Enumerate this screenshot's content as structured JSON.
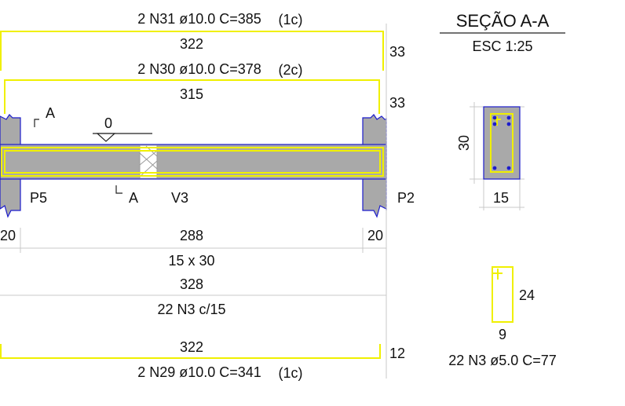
{
  "drawing": {
    "top_bar": {
      "label": "2 N31 ø10.0 C=385",
      "layer": "(1c)",
      "length": "322",
      "hook": "33"
    },
    "second_bar": {
      "label": "2 N30 ø10.0 C=378",
      "layer": "(2c)",
      "length": "315",
      "hook": "33"
    },
    "beam": {
      "level": "0",
      "section_mark_top": "A",
      "section_mark_bottom": "A",
      "name": "V3",
      "left_support": "P5",
      "right_support": "P2"
    },
    "dimensions": {
      "left_support_width": "20",
      "span": "288",
      "right_support_width": "20",
      "section_size": "15 x 30",
      "total_length": "328",
      "stirrups": "22 N3 c/15"
    },
    "bottom_bar": {
      "length": "322",
      "hook": "12",
      "label": "2 N29 ø10.0 C=341",
      "layer": "(1c)"
    }
  },
  "section": {
    "title": "SEÇÃO A-A",
    "scale": "ESC 1:25",
    "height": "30",
    "width": "15"
  },
  "stirrup_detail": {
    "height": "24",
    "width": "9",
    "label": "22 N3 ø5.0 C=77"
  },
  "colors": {
    "rebar": "#f0f000",
    "concrete": "#a9a9a9",
    "outline": "#1c1ccc",
    "dimension_line": "#c8c8c8"
  }
}
